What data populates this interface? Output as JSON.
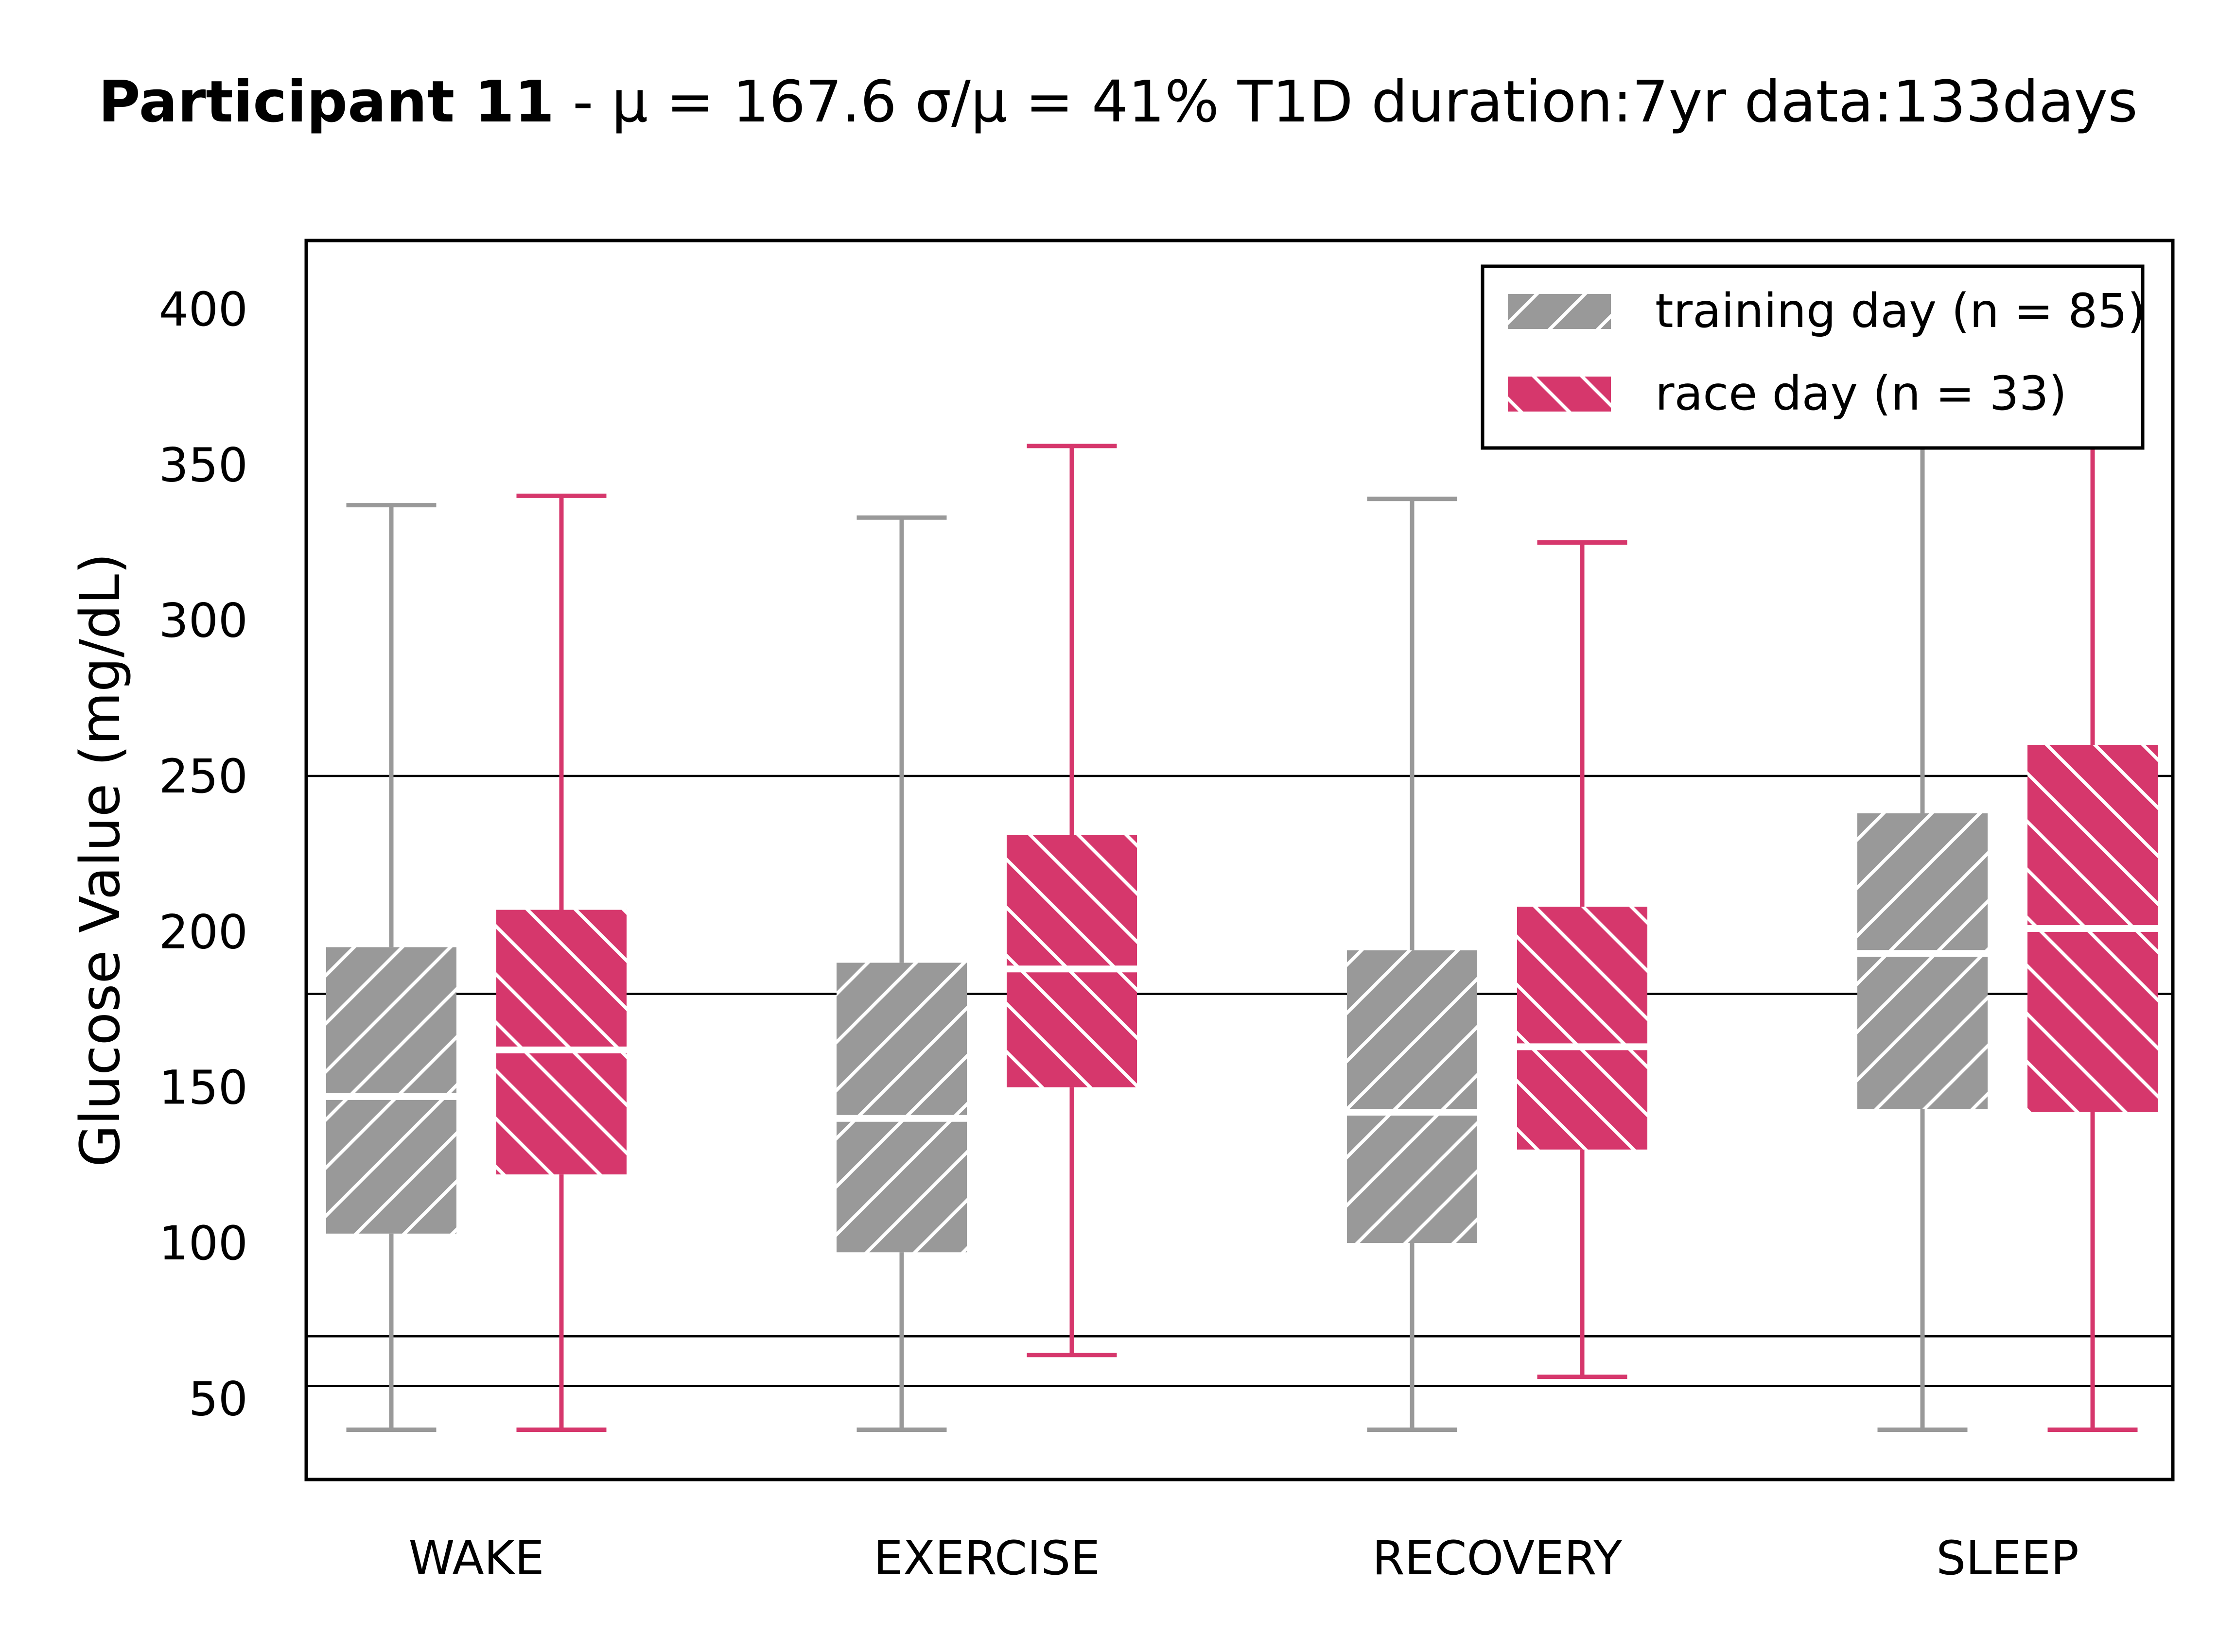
{
  "title": {
    "participant": "Participant 11",
    "separator": " - ",
    "stats": "μ = 167.6   σ/μ = 41%   T1D duration:7yr   data:133days"
  },
  "colors": {
    "training": "#999999",
    "race": "#d6376c",
    "hatch": "#ffffff",
    "frame": "#000000"
  },
  "chart_data": {
    "type": "box",
    "categories": [
      "WAKE",
      "EXERCISE",
      "RECOVERY",
      "SLEEP"
    ],
    "ylabel": "Glucose Value (mg/dL)",
    "xlabel": "",
    "ylim": [
      24,
      422
    ],
    "yticks": [
      50,
      100,
      150,
      200,
      250,
      300,
      350,
      400
    ],
    "reference_lines": [
      54,
      70,
      180,
      250
    ],
    "grid": false,
    "legend": {
      "position": "top-right",
      "entries": [
        {
          "series": "training",
          "label": "training day (n = 85)",
          "hatch": "forward-diagonal"
        },
        {
          "series": "race",
          "label": "race day (n = 33)",
          "hatch": "back-diagonal"
        }
      ]
    },
    "series": [
      {
        "key": "training",
        "name": "training day",
        "n": 85,
        "boxes": [
          {
            "category": "WAKE",
            "whisker_low": 40,
            "q1": 103,
            "median": 147,
            "q3": 195,
            "whisker_high": 337
          },
          {
            "category": "EXERCISE",
            "whisker_low": 40,
            "q1": 97,
            "median": 140,
            "q3": 190,
            "whisker_high": 333
          },
          {
            "category": "RECOVERY",
            "whisker_low": 40,
            "q1": 100,
            "median": 142,
            "q3": 194,
            "whisker_high": 339
          },
          {
            "category": "SLEEP",
            "whisker_low": 40,
            "q1": 143,
            "median": 193,
            "q3": 238,
            "whisker_high": 400
          }
        ]
      },
      {
        "key": "race",
        "name": "race day",
        "n": 33,
        "boxes": [
          {
            "category": "WAKE",
            "whisker_low": 40,
            "q1": 122,
            "median": 162,
            "q3": 207,
            "whisker_high": 340
          },
          {
            "category": "EXERCISE",
            "whisker_low": 64,
            "q1": 150,
            "median": 188,
            "q3": 231,
            "whisker_high": 356
          },
          {
            "category": "RECOVERY",
            "whisker_low": 57,
            "q1": 130,
            "median": 163,
            "q3": 208,
            "whisker_high": 325
          },
          {
            "category": "SLEEP",
            "whisker_low": 40,
            "q1": 142,
            "median": 201,
            "q3": 260,
            "whisker_high": 400
          }
        ]
      }
    ]
  }
}
